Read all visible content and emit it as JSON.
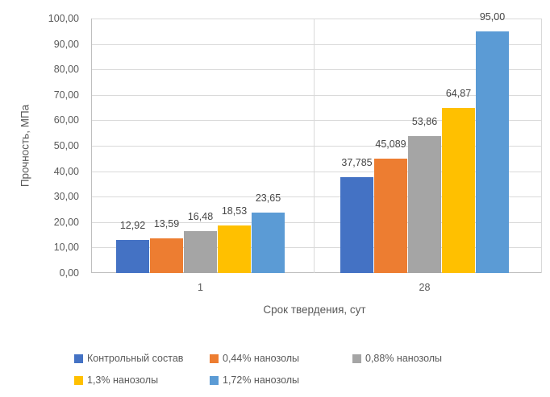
{
  "chart_data": {
    "type": "bar",
    "title": "",
    "categories": [
      "1",
      "28"
    ],
    "series": [
      {
        "name": "Контрольный состав",
        "color": "#4472C4",
        "values": [
          12.92,
          37.785
        ],
        "labels": [
          "12,92",
          "37,785"
        ]
      },
      {
        "name": "0,44% нанозолы",
        "color": "#ED7D31",
        "values": [
          13.59,
          45.089
        ],
        "labels": [
          "13,59",
          "45,089"
        ]
      },
      {
        "name": "0,88% нанозолы",
        "color": "#A5A5A5",
        "values": [
          16.48,
          53.86
        ],
        "labels": [
          "16,48",
          "53,86"
        ]
      },
      {
        "name": "1,3% нанозолы",
        "color": "#FFC000",
        "values": [
          18.53,
          64.87
        ],
        "labels": [
          "18,53",
          "64,87"
        ]
      },
      {
        "name": "1,72% нанозолы",
        "color": "#5B9BD5",
        "values": [
          23.65,
          95.0
        ],
        "labels": [
          "23,65",
          "95,00"
        ]
      }
    ],
    "xlabel": "Срок твердения, сут",
    "ylabel": "Прочность, МПа",
    "ylim": [
      0,
      100
    ],
    "ytick_step": 10,
    "ytick_labels": [
      "0,00",
      "10,00",
      "20,00",
      "30,00",
      "40,00",
      "50,00",
      "60,00",
      "70,00",
      "80,00",
      "90,00",
      "100,00"
    ],
    "grid": true,
    "legend_position": "bottom",
    "colors": {
      "text": "#595959",
      "data_label_text": "#474747",
      "gridline": "#D9D9D9",
      "axis_line": "#BFBFBF",
      "background": "#FFFFFF"
    }
  }
}
